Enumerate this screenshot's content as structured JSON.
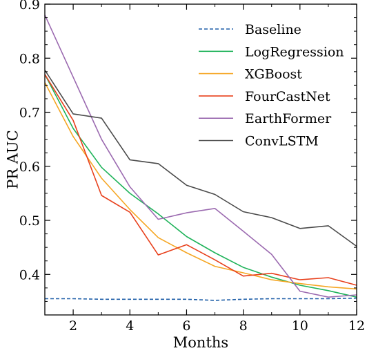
{
  "chart_data": {
    "type": "line",
    "title": "",
    "xlabel": "Months",
    "ylabel": "PR AUC",
    "xlim": [
      1,
      12
    ],
    "ylim": [
      0.325,
      0.9
    ],
    "xticks": [
      2,
      4,
      6,
      8,
      10,
      12
    ],
    "yticks": [
      0.4,
      0.5,
      0.6,
      0.7,
      0.8,
      0.9
    ],
    "x": [
      1,
      2,
      3,
      4,
      5,
      6,
      7,
      8,
      9,
      10,
      11,
      12
    ],
    "grid": false,
    "legend_position": "top-right",
    "series": [
      {
        "name": "Baseline",
        "color": "#1f5fa8",
        "dash": true,
        "values": [
          0.355,
          0.355,
          0.354,
          0.354,
          0.354,
          0.354,
          0.352,
          0.354,
          0.355,
          0.355,
          0.355,
          0.356
        ]
      },
      {
        "name": "LogRegression",
        "color": "#1fb35a",
        "dash": false,
        "values": [
          0.77,
          0.67,
          0.598,
          0.55,
          0.512,
          0.47,
          0.44,
          0.413,
          0.395,
          0.38,
          0.37,
          0.358
        ]
      },
      {
        "name": "XGBoost",
        "color": "#f5a623",
        "dash": false,
        "values": [
          0.755,
          0.655,
          0.578,
          0.52,
          0.468,
          0.44,
          0.415,
          0.403,
          0.39,
          0.383,
          0.377,
          0.373
        ]
      },
      {
        "name": "FourCastNet",
        "color": "#e8401c",
        "dash": false,
        "values": [
          0.77,
          0.685,
          0.546,
          0.515,
          0.436,
          0.455,
          0.427,
          0.397,
          0.402,
          0.39,
          0.394,
          0.38
        ]
      },
      {
        "name": "EarthFormer",
        "color": "#9b6ab0",
        "dash": false,
        "values": [
          0.88,
          0.765,
          0.65,
          0.562,
          0.502,
          0.514,
          0.522,
          0.48,
          0.437,
          0.369,
          0.358,
          0.362
        ]
      },
      {
        "name": "ConvLSTM",
        "color": "#4a4a4a",
        "dash": false,
        "values": [
          0.778,
          0.697,
          0.689,
          0.612,
          0.605,
          0.565,
          0.548,
          0.516,
          0.505,
          0.485,
          0.49,
          0.452
        ]
      }
    ]
  }
}
